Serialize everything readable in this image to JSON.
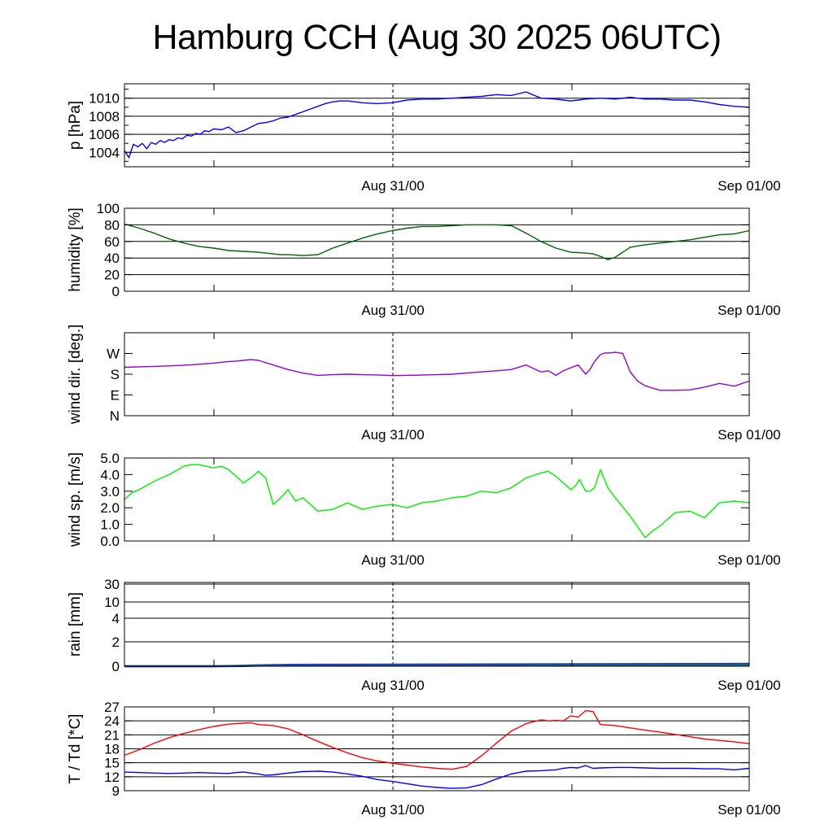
{
  "title": "Hamburg CCH (Aug 30 2025 06UTC)",
  "x_tick_labels": [
    "Aug 31/00",
    "Sep 01/00"
  ],
  "colors": {
    "pressure": "#0000ff",
    "humidity": "#006400",
    "wind_dir": "#9400d3",
    "wind_speed": "#00ee00",
    "rain_green": "#228b22",
    "rain_blue": "#1f3fbf",
    "temperature": "#ff0000",
    "dewpoint": "#0000ff",
    "grid": "#000000"
  },
  "chart_data": [
    {
      "id": "pressure",
      "type": "line",
      "ylabel": "p [hPa]",
      "ylim": [
        1002.4,
        1011.6
      ],
      "yticks": [
        1004,
        1006,
        1008,
        1010
      ],
      "ytick_labels": [
        "1004",
        "1006",
        "1008",
        "1010"
      ],
      "hgrid": [
        1004,
        1006,
        1008,
        1010
      ],
      "xlim": [
        0,
        42
      ],
      "series": [
        {
          "color_key": "pressure",
          "x": [
            0,
            0.3,
            0.6,
            0.9,
            1.2,
            1.5,
            1.8,
            2.1,
            2.4,
            2.7,
            3,
            3.3,
            3.6,
            3.9,
            4.2,
            4.5,
            4.8,
            5.1,
            5.4,
            5.7,
            6,
            6.5,
            7,
            7.5,
            8,
            8.5,
            9,
            9.5,
            10,
            10.5,
            11,
            11.5,
            12,
            12.5,
            13,
            13.5,
            14,
            14.5,
            15,
            15.5,
            16,
            17,
            18,
            19,
            20,
            21,
            22,
            23,
            24,
            25,
            26,
            27,
            28,
            29,
            29.5,
            30,
            30.5,
            31,
            32,
            33,
            34,
            35,
            36,
            37,
            38,
            39,
            40,
            41,
            42
          ],
          "values": [
            1004.2,
            1003.4,
            1004.9,
            1004.6,
            1005.0,
            1004.4,
            1005.1,
            1004.9,
            1005.3,
            1005.1,
            1005.4,
            1005.3,
            1005.6,
            1005.5,
            1005.9,
            1005.8,
            1006.1,
            1006.0,
            1006.4,
            1006.3,
            1006.6,
            1006.5,
            1006.8,
            1006.2,
            1006.4,
            1006.8,
            1007.2,
            1007.3,
            1007.5,
            1007.8,
            1007.9,
            1008.2,
            1008.5,
            1008.8,
            1009.1,
            1009.4,
            1009.6,
            1009.7,
            1009.7,
            1009.6,
            1009.5,
            1009.4,
            1009.5,
            1009.8,
            1009.9,
            1009.9,
            1010.0,
            1010.1,
            1010.2,
            1010.4,
            1010.3,
            1010.7,
            1010.0,
            1009.9,
            1009.8,
            1009.7,
            1009.8,
            1009.9,
            1010.0,
            1009.9,
            1010.1,
            1009.9,
            1009.9,
            1009.8,
            1009.8,
            1009.6,
            1009.3,
            1009.1,
            1009.0
          ]
        }
      ]
    },
    {
      "id": "humidity",
      "type": "line",
      "ylabel": "humidity [%]",
      "ylim": [
        0,
        100
      ],
      "yticks": [
        0,
        20,
        40,
        60,
        80,
        100
      ],
      "ytick_labels": [
        "0",
        "20",
        "40",
        "60",
        "80",
        "100"
      ],
      "hgrid": [
        20,
        40,
        60,
        80
      ],
      "xlim": [
        0,
        42
      ],
      "series": [
        {
          "color_key": "humidity",
          "x": [
            0,
            1,
            2,
            3,
            4,
            5,
            6,
            7,
            8,
            9,
            10,
            10.5,
            11,
            12,
            13,
            14,
            15,
            16,
            17,
            18,
            19,
            20,
            21,
            22,
            23,
            24,
            25,
            26,
            27,
            28,
            29,
            30,
            31,
            31.5,
            32,
            32.5,
            33,
            34,
            35,
            36,
            37,
            38,
            39,
            40,
            41,
            42
          ],
          "values": [
            81,
            76,
            70,
            63,
            58,
            54,
            52,
            49,
            48,
            47,
            45,
            44,
            44,
            43,
            44,
            52,
            58,
            64,
            69,
            73,
            76,
            78,
            78,
            79,
            80,
            80,
            80,
            79,
            70,
            60,
            52,
            47,
            46,
            45,
            42,
            38,
            41,
            53,
            56,
            58,
            60,
            62,
            65,
            68,
            69,
            73
          ]
        }
      ]
    },
    {
      "id": "wind_dir",
      "type": "line",
      "ylabel": "wind dir. [deg.]",
      "ylim": [
        0,
        360
      ],
      "yticks": [
        0,
        90,
        180,
        270
      ],
      "ytick_labels": [
        "N",
        "E",
        "S",
        "W"
      ],
      "hgrid": [],
      "xlim": [
        0,
        42
      ],
      "series": [
        {
          "color_key": "wind_dir",
          "x": [
            0,
            1,
            2,
            3,
            4,
            5,
            6,
            7,
            7.5,
            8,
            8.5,
            9,
            10,
            11,
            12,
            13,
            14,
            15,
            16,
            17,
            18,
            19,
            20,
            21,
            22,
            23,
            24,
            25,
            26,
            27,
            28,
            28.5,
            29,
            29.5,
            30,
            30.5,
            31,
            31.3,
            31.6,
            32,
            32.3,
            32.6,
            33,
            33.5,
            34,
            34.5,
            35,
            35.5,
            36,
            37,
            38,
            39,
            40,
            41,
            42
          ],
          "values": [
            210,
            212,
            214,
            216,
            219,
            223,
            228,
            235,
            237,
            240,
            244,
            240,
            220,
            200,
            185,
            175,
            178,
            180,
            178,
            177,
            174,
            175,
            176,
            178,
            180,
            185,
            190,
            195,
            200,
            220,
            190,
            195,
            175,
            195,
            208,
            220,
            180,
            200,
            235,
            265,
            272,
            272,
            275,
            270,
            190,
            150,
            130,
            120,
            110,
            110,
            112,
            124,
            140,
            128,
            150
          ]
        }
      ]
    },
    {
      "id": "wind_speed",
      "type": "line",
      "ylabel": "wind sp. [m/s]",
      "ylim": [
        0,
        5
      ],
      "yticks": [
        0,
        1,
        2,
        3,
        4,
        5
      ],
      "ytick_labels": [
        "0.0",
        "1.0",
        "2.0",
        "3.0",
        "4.0",
        "5.0"
      ],
      "hgrid": [],
      "xlim": [
        0,
        42
      ],
      "series": [
        {
          "color_key": "wind_speed",
          "x": [
            0,
            0.5,
            1,
            2,
            3,
            4,
            4.5,
            5,
            6,
            6.5,
            7,
            7.5,
            8,
            8.5,
            9,
            9.5,
            10,
            10.5,
            11,
            11.5,
            12,
            13,
            14,
            15,
            16,
            17,
            18,
            19,
            20,
            21,
            22,
            23,
            24,
            25,
            26,
            27,
            28,
            28.5,
            29,
            29.5,
            30,
            30.3,
            30.6,
            31,
            31.3,
            31.6,
            32,
            32.5,
            33,
            34,
            35,
            35.5,
            36,
            37,
            38,
            39,
            40,
            41,
            42
          ],
          "values": [
            2.5,
            2.9,
            3.1,
            3.6,
            4.0,
            4.5,
            4.6,
            4.6,
            4.4,
            4.5,
            4.3,
            3.9,
            3.5,
            3.8,
            4.2,
            3.8,
            2.2,
            2.6,
            3.1,
            2.4,
            2.6,
            1.8,
            1.9,
            2.3,
            1.9,
            2.1,
            2.2,
            2.0,
            2.3,
            2.4,
            2.6,
            2.7,
            3.0,
            2.9,
            3.2,
            3.8,
            4.1,
            4.2,
            3.9,
            3.5,
            3.1,
            3.3,
            3.7,
            3.0,
            3.0,
            3.2,
            4.3,
            3.2,
            2.6,
            1.5,
            0.2,
            0.6,
            0.9,
            1.7,
            1.8,
            1.4,
            2.3,
            2.4,
            2.3
          ]
        }
      ]
    },
    {
      "id": "rain",
      "type": "area",
      "ylabel": "rain [mm]",
      "ylim": [
        0,
        30
      ],
      "yticks": [
        0,
        2,
        4,
        10,
        30
      ],
      "ytick_labels": [
        "0",
        "2",
        "4",
        "10",
        "30"
      ],
      "hgrid": [
        2,
        4,
        10,
        30
      ],
      "xlim": [
        0,
        42
      ],
      "series": [
        {
          "color_key": "rain_green",
          "x": [
            0,
            6,
            7,
            8,
            9,
            10,
            42
          ],
          "values": [
            0,
            0,
            0.02,
            0.05,
            0.08,
            0.1,
            0.1
          ]
        },
        {
          "color_key": "rain_blue",
          "x": [
            0,
            6,
            8,
            10,
            11,
            42
          ],
          "values": [
            0,
            0,
            0.02,
            0.08,
            0.12,
            0.2
          ]
        }
      ]
    },
    {
      "id": "temperature",
      "type": "line",
      "ylabel": "T / Td [*C]",
      "ylim": [
        9,
        27
      ],
      "yticks": [
        9,
        12,
        15,
        18,
        21,
        24,
        27
      ],
      "ytick_labels": [
        "9",
        "12",
        "15",
        "18",
        "21",
        "24",
        "27"
      ],
      "hgrid": [
        12,
        15,
        18,
        21,
        24,
        27
      ],
      "xlim": [
        0,
        42
      ],
      "series": [
        {
          "color_key": "temperature",
          "x": [
            0,
            1,
            2,
            3,
            4,
            5,
            6,
            7,
            8,
            8.5,
            9,
            10,
            11,
            12,
            13,
            14,
            15,
            16,
            17,
            18,
            19,
            20,
            21,
            22,
            23,
            24,
            25,
            26,
            27,
            28,
            28.5,
            29,
            29.5,
            30,
            30.5,
            31,
            31.5,
            32,
            33,
            34,
            35,
            36,
            37,
            38,
            39,
            40,
            41,
            42
          ],
          "values": [
            16.6,
            17.8,
            19.2,
            20.4,
            21.3,
            22.1,
            22.8,
            23.3,
            23.5,
            23.6,
            23.2,
            23.0,
            22.3,
            21.0,
            19.6,
            18.3,
            17.1,
            16.1,
            15.4,
            14.9,
            14.5,
            14.1,
            13.8,
            13.6,
            14.2,
            16.5,
            19.2,
            21.8,
            23.4,
            24.2,
            24.0,
            24.1,
            24.0,
            25.1,
            24.8,
            26.2,
            26.0,
            23.2,
            23.0,
            22.5,
            22.0,
            21.6,
            21.1,
            20.6,
            20.1,
            19.8,
            19.5,
            19.1
          ]
        },
        {
          "color_key": "dewpoint",
          "x": [
            0,
            1,
            2,
            3,
            4,
            5,
            6,
            7,
            7.5,
            8,
            8.5,
            9,
            9.5,
            10,
            11,
            12,
            13,
            14,
            15,
            16,
            17,
            18,
            19,
            20,
            21,
            22,
            23,
            24,
            25,
            26,
            27,
            28,
            29,
            29.5,
            30,
            30.5,
            31,
            31.5,
            32,
            33,
            34,
            35,
            36,
            37,
            38,
            39,
            40,
            41,
            42
          ],
          "values": [
            13.0,
            12.9,
            12.8,
            12.7,
            12.8,
            12.9,
            12.8,
            12.7,
            12.9,
            13.0,
            12.8,
            12.6,
            12.3,
            12.4,
            12.8,
            13.1,
            13.2,
            13.0,
            12.6,
            12.1,
            11.4,
            11.0,
            10.5,
            10.0,
            9.7,
            9.5,
            9.6,
            10.3,
            11.5,
            12.6,
            13.2,
            13.3,
            13.5,
            13.8,
            14.0,
            13.9,
            14.4,
            13.8,
            13.9,
            14.0,
            14.0,
            13.9,
            13.8,
            13.8,
            13.8,
            13.7,
            13.7,
            13.5,
            13.8
          ]
        }
      ]
    }
  ]
}
